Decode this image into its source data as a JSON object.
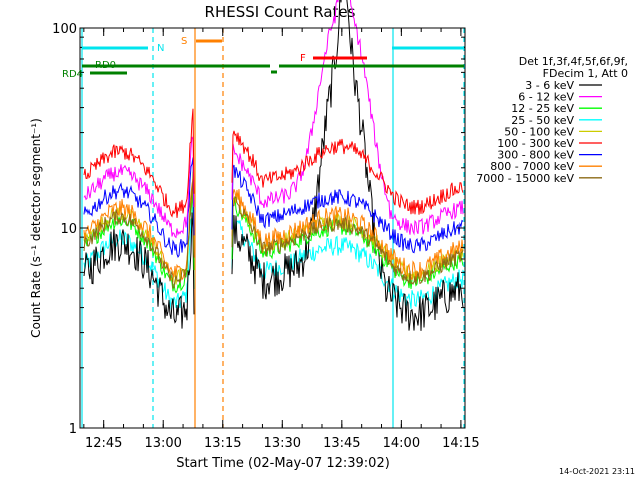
{
  "chart_data": {
    "type": "line",
    "title": "RHESSI Count Rates",
    "xlabel": "Start Time (02-May-07 12:39:02)",
    "ylabel": "Count Rate (s⁻¹ detector segment⁻¹)",
    "yscale": "log",
    "ylim": [
      1,
      100
    ],
    "xlim_minutes_since_1239": [
      0,
      97
    ],
    "x_ticks": [
      "12:45",
      "13:00",
      "13:15",
      "13:30",
      "13:45",
      "14:00",
      "14:15"
    ],
    "y_ticks": [
      "1",
      "10",
      "100"
    ],
    "legend_position": "right",
    "legend_header": [
      "Det 1f,3f,4f,5f,6f,9f,",
      "FDecim 1, Att 0"
    ],
    "series": [
      {
        "name": "3 - 6 keV",
        "color": "#000000"
      },
      {
        "name": "6 - 12 keV",
        "color": "#ff00ff"
      },
      {
        "name": "12 - 25 keV",
        "color": "#00ff00"
      },
      {
        "name": "25 - 50 keV",
        "color": "#00ffff"
      },
      {
        "name": "50 - 100 keV",
        "color": "#cccc00"
      },
      {
        "name": "100 - 300 keV",
        "color": "#ff0000"
      },
      {
        "name": "300 - 800 keV",
        "color": "#0000ff"
      },
      {
        "name": "800 - 7000 keV",
        "color": "#ff8000"
      },
      {
        "name": "7000 - 15000 keV",
        "color": "#8b6914"
      }
    ],
    "flag_bars": [
      {
        "label": "N",
        "color": "#00e5ee"
      },
      {
        "label": "S",
        "color": "#ff8000"
      },
      {
        "label": "RD0",
        "color": "#008000"
      },
      {
        "label": "RD4",
        "color": "#008000"
      },
      {
        "label": "F",
        "color": "#ff0000"
      }
    ],
    "footer_timestamp": "14-Oct-2021 23:11"
  }
}
